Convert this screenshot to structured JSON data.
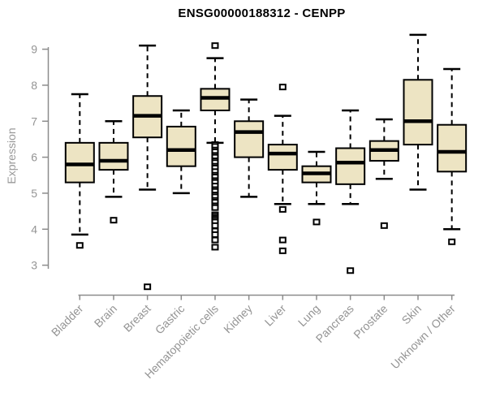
{
  "chart_data": {
    "type": "boxplot",
    "title": "ENSG00000188312 - CENPP",
    "xlabel": "",
    "ylabel": "Expression",
    "yticks": [
      3,
      4,
      5,
      6,
      7,
      8,
      9
    ],
    "ylim": [
      2.2,
      9.6
    ],
    "grid": false,
    "legend": "none",
    "categories": [
      "Bladder",
      "Brain",
      "Breast",
      "Gastric",
      "Hematopoietic cells",
      "Kidney",
      "Liver",
      "Lung",
      "Pancreas",
      "Prostate",
      "Skin",
      "Unknown / Other"
    ],
    "boxes": [
      {
        "category": "Bladder",
        "low": 3.85,
        "q1": 5.3,
        "median": 5.8,
        "q3": 6.4,
        "high": 7.75,
        "outliers": [
          3.55
        ]
      },
      {
        "category": "Brain",
        "low": 4.9,
        "q1": 5.65,
        "median": 5.9,
        "q3": 6.4,
        "high": 7.0,
        "outliers": [
          4.25
        ]
      },
      {
        "category": "Breast",
        "low": 5.1,
        "q1": 6.55,
        "median": 7.15,
        "q3": 7.7,
        "high": 9.1,
        "outliers": [
          2.4
        ]
      },
      {
        "category": "Gastric",
        "low": 5.0,
        "q1": 5.75,
        "median": 6.2,
        "q3": 6.85,
        "high": 7.3,
        "outliers": []
      },
      {
        "category": "Hematopoietic cells",
        "low": 6.4,
        "q1": 7.3,
        "median": 7.65,
        "q3": 7.9,
        "high": 8.75,
        "outliers": [
          9.1,
          6.35,
          6.3,
          6.2,
          6.15,
          6.05,
          6.0,
          5.9,
          5.85,
          5.75,
          5.7,
          5.6,
          5.5,
          5.45,
          5.35,
          5.3,
          5.2,
          5.1,
          5.05,
          4.95,
          4.9,
          4.8,
          4.75,
          4.65,
          4.6,
          4.4,
          4.35,
          4.3,
          4.25,
          4.2,
          4.1,
          3.95,
          3.85,
          3.7,
          3.5
        ]
      },
      {
        "category": "Kidney",
        "low": 4.9,
        "q1": 6.0,
        "median": 6.7,
        "q3": 7.0,
        "high": 7.6,
        "outliers": []
      },
      {
        "category": "Liver",
        "low": 4.7,
        "q1": 5.65,
        "median": 6.1,
        "q3": 6.35,
        "high": 7.15,
        "outliers": [
          7.95,
          4.55,
          3.7,
          3.4
        ]
      },
      {
        "category": "Lung",
        "low": 4.7,
        "q1": 5.3,
        "median": 5.55,
        "q3": 5.75,
        "high": 6.15,
        "outliers": [
          4.2
        ]
      },
      {
        "category": "Pancreas",
        "low": 4.7,
        "q1": 5.25,
        "median": 5.85,
        "q3": 6.25,
        "high": 7.3,
        "outliers": [
          2.85
        ]
      },
      {
        "category": "Prostate",
        "low": 5.4,
        "q1": 5.9,
        "median": 6.2,
        "q3": 6.45,
        "high": 7.05,
        "outliers": [
          4.1
        ]
      },
      {
        "category": "Skin",
        "low": 5.1,
        "q1": 6.35,
        "median": 7.0,
        "q3": 8.15,
        "high": 9.4,
        "outliers": []
      },
      {
        "category": "Unknown / Other",
        "low": 4.0,
        "q1": 5.6,
        "median": 6.15,
        "q3": 6.9,
        "high": 8.45,
        "outliers": [
          3.65
        ]
      }
    ],
    "colors": {
      "box_fill": "#ede4c3",
      "box_border": "#000000",
      "median": "#000000",
      "axis": "#8c8c8c",
      "label": "#949494",
      "title": "#000000",
      "background": "#ffffff"
    }
  }
}
